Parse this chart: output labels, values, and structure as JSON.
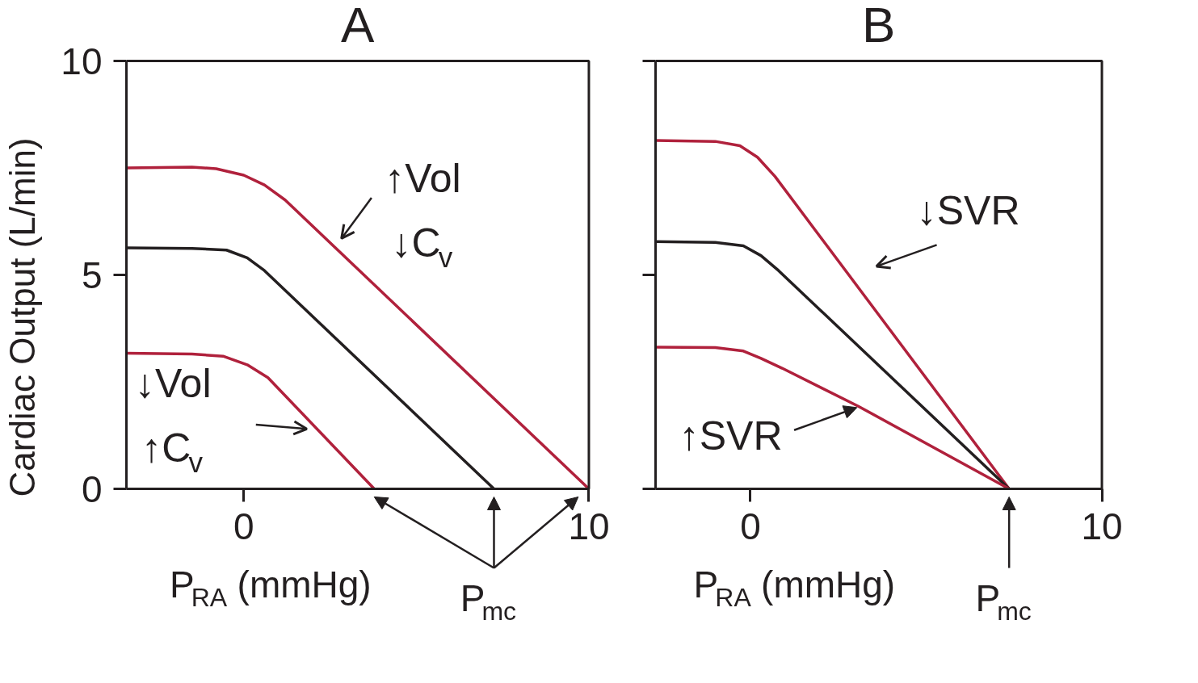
{
  "chart_data": [
    {
      "type": "line",
      "title": "A",
      "xlabel": "P$_{RA}$ (mmHg)",
      "ylabel": "Cardiac Output (L/min)",
      "xlim": [
        -3.4,
        10
      ],
      "ylim": [
        0,
        10
      ],
      "xticks": [
        0,
        10
      ],
      "yticks": [
        0,
        5,
        10
      ],
      "series": [
        {
          "color": "#b0213c",
          "x": [
            -3.4,
            -1.5,
            -0.8,
            0.0,
            0.6,
            1.2,
            10.0
          ],
          "values": [
            7.5,
            7.52,
            7.48,
            7.33,
            7.1,
            6.75,
            0
          ]
        },
        {
          "color": "#231f20",
          "x": [
            -3.4,
            -1.5,
            -0.5,
            0.1,
            0.6,
            7.25
          ],
          "values": [
            5.63,
            5.62,
            5.58,
            5.4,
            5.1,
            0
          ]
        },
        {
          "color": "#b0213c",
          "x": [
            -3.4,
            -1.5,
            -0.6,
            0.1,
            0.7,
            3.78
          ],
          "values": [
            3.17,
            3.15,
            3.1,
            2.9,
            2.6,
            0
          ]
        }
      ],
      "annotations": [
        "↑Vol\n↓C$_{v}$",
        "↓Vol\n↑C$_{v}$",
        "P$_{mc}$"
      ]
    },
    {
      "type": "line",
      "title": "B",
      "xlabel": "P$_{RA}$ (mmHg)",
      "xlim": [
        -2.7,
        10
      ],
      "ylim": [
        0,
        10
      ],
      "xticks": [
        0,
        10
      ],
      "yticks": [
        0,
        5,
        10
      ],
      "tick_labels": "x",
      "series": [
        {
          "color": "#b0213c",
          "x": [
            -2.7,
            -1.0,
            -0.3,
            0.2,
            0.7,
            7.36
          ],
          "values": [
            8.14,
            8.12,
            8.02,
            7.75,
            7.3,
            0
          ]
        },
        {
          "color": "#231f20",
          "x": [
            -2.7,
            -1.0,
            -0.2,
            0.3,
            0.8,
            7.36
          ],
          "values": [
            5.78,
            5.76,
            5.68,
            5.45,
            5.1,
            0
          ]
        },
        {
          "color": "#b0213c",
          "x": [
            -2.7,
            -1.0,
            -0.2,
            0.3,
            0.9,
            3.07,
            7.36
          ],
          "values": [
            3.31,
            3.3,
            3.22,
            3.05,
            2.82,
            1.93,
            0
          ]
        }
      ],
      "annotations": [
        "↓SVR",
        {
          "text": "↑SVR",
          "x": 3.03,
          "y": 1.9
        },
        "P$_{mc}$"
      ]
    }
  ]
}
